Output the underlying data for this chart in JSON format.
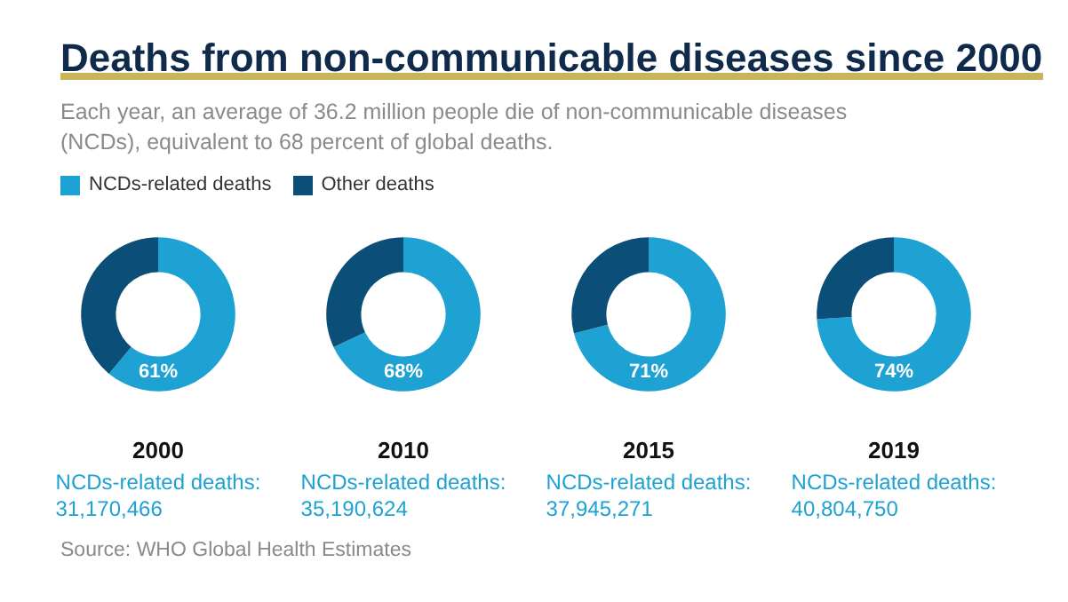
{
  "chart_data": [
    {
      "type": "donut",
      "title": "Deaths from non-communicable diseases since 2000",
      "subtitle": "Each year, an average of 36.2 million people die of non-communicable diseases (NCDs), equivalent to 68 percent of global deaths.",
      "legend": "top",
      "xlabel": "2000",
      "categories": [
        "NCDs-related deaths",
        "Other deaths"
      ],
      "values": [
        61,
        39
      ],
      "value_labels": [
        "61%",
        null
      ],
      "colors": [
        "#1ea2d3",
        "#0b4f78"
      ],
      "annotations": [
        "NCDs-related deaths:\n31,170,466",
        "Source: WHO Global Health Estimates"
      ]
    },
    {
      "type": "donut",
      "xlabel": "2010",
      "values": [
        68,
        32
      ],
      "value_labels": [
        "68%",
        null
      ],
      "colors": [
        "#1ea2d3",
        "#0b4f78"
      ],
      "annotations": [
        "NCDs-related deaths:\n35,190,624"
      ]
    },
    {
      "type": "donut",
      "xlabel": "2015",
      "values": [
        71,
        29
      ],
      "value_labels": [
        "71%",
        null
      ],
      "colors": [
        "#1ea2d3",
        "#0b4f78"
      ],
      "annotations": [
        "NCDs-related deaths:\n37,945,271"
      ]
    },
    {
      "type": "donut",
      "xlabel": "2019",
      "values": [
        74,
        26
      ],
      "value_labels": [
        "74%",
        null
      ],
      "colors": [
        "#1ea2d3",
        "#0b4f78"
      ],
      "annotations": [
        "NCDs-related deaths:\n40,804,750"
      ]
    }
  ]
}
